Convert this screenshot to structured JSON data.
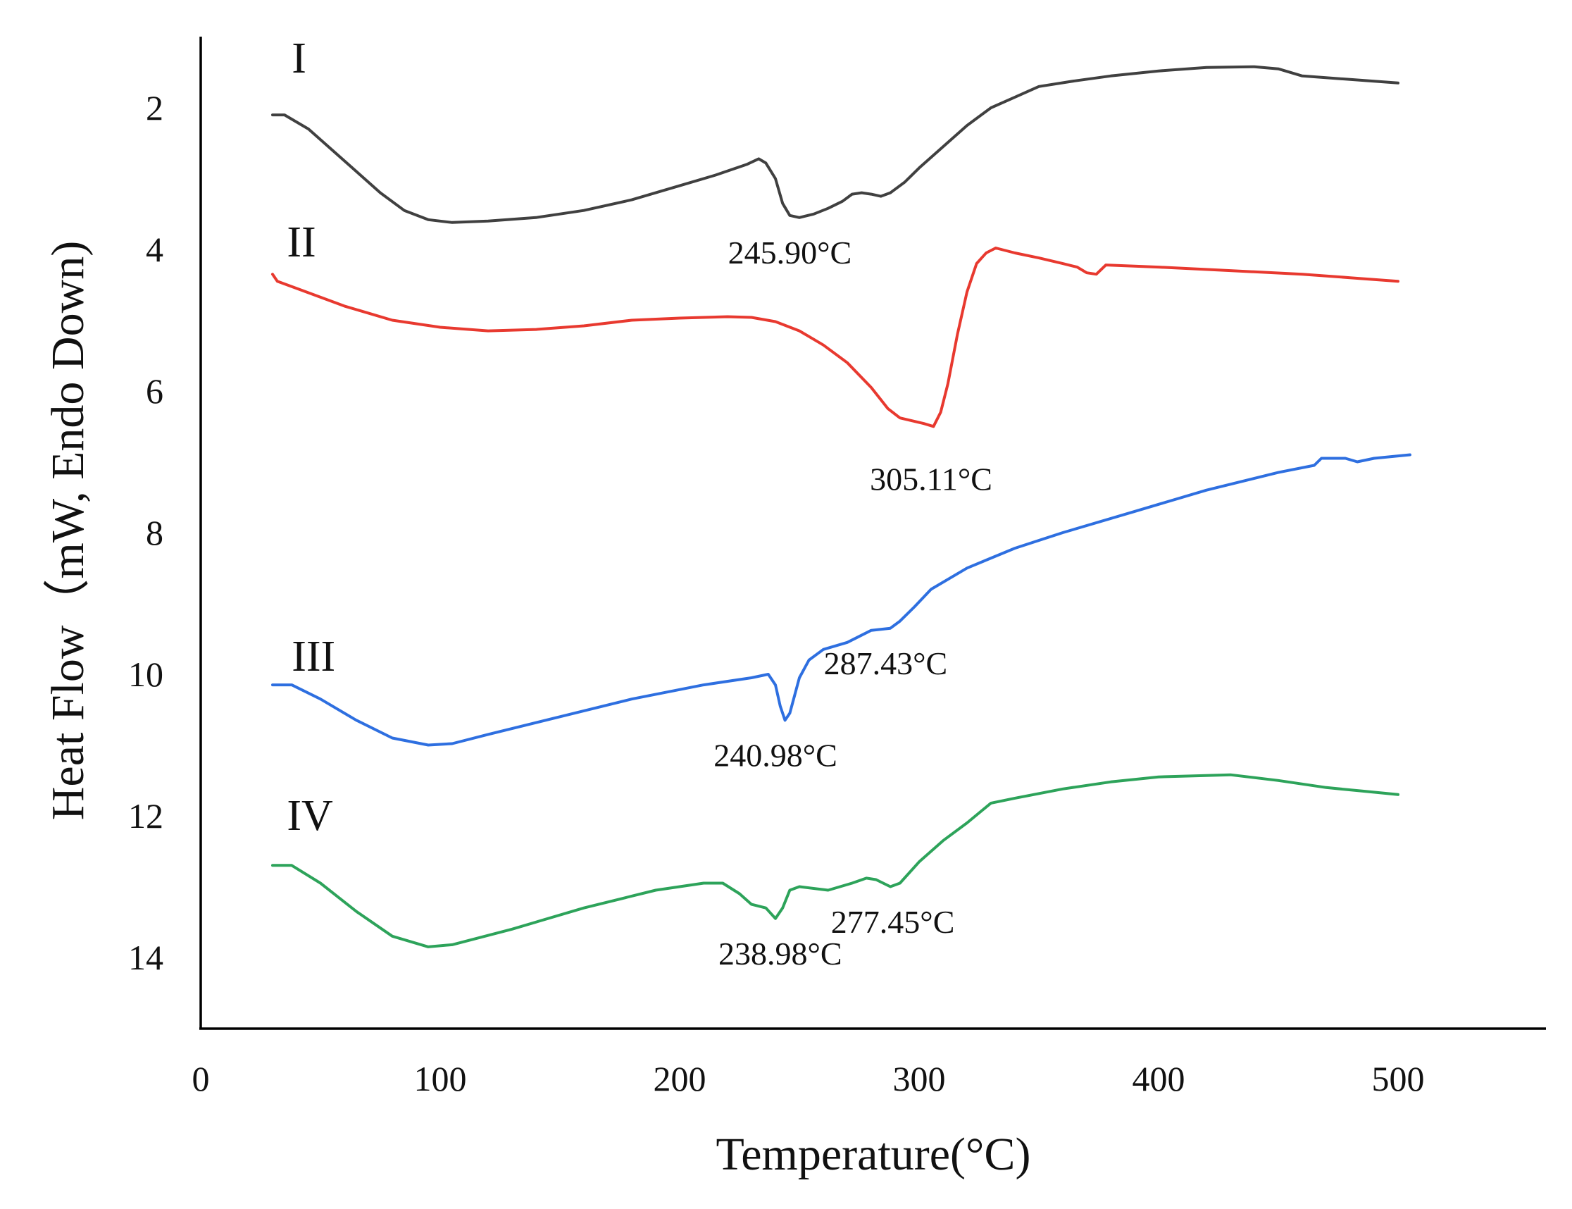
{
  "chart_data": {
    "type": "line",
    "title": "",
    "xlabel": "Temperature(°C)",
    "ylabel": "Heat Flow（mW, Endo Down)",
    "xlim": [
      0,
      550
    ],
    "ylim": [
      15,
      1
    ],
    "y_inverted": true,
    "grid": false,
    "legend": "none",
    "x_ticks": [
      "0",
      "100",
      "200",
      "300",
      "400",
      "500"
    ],
    "y_ticks": [
      "2",
      "4",
      "6",
      "8",
      "10",
      "12",
      "14"
    ],
    "series": [
      {
        "name": "I",
        "color": "#404040",
        "points": [
          [
            30,
            2.1
          ],
          [
            35,
            2.1
          ],
          [
            45,
            2.3
          ],
          [
            55,
            2.6
          ],
          [
            65,
            2.9
          ],
          [
            75,
            3.2
          ],
          [
            85,
            3.45
          ],
          [
            95,
            3.58
          ],
          [
            105,
            3.62
          ],
          [
            120,
            3.6
          ],
          [
            140,
            3.55
          ],
          [
            160,
            3.45
          ],
          [
            180,
            3.3
          ],
          [
            200,
            3.1
          ],
          [
            215,
            2.95
          ],
          [
            228,
            2.8
          ],
          [
            233,
            2.72
          ],
          [
            236,
            2.78
          ],
          [
            240,
            3.0
          ],
          [
            243,
            3.35
          ],
          [
            246,
            3.52
          ],
          [
            250,
            3.55
          ],
          [
            256,
            3.5
          ],
          [
            262,
            3.42
          ],
          [
            268,
            3.32
          ],
          [
            272,
            3.22
          ],
          [
            276,
            3.2
          ],
          [
            280,
            3.22
          ],
          [
            284,
            3.25
          ],
          [
            288,
            3.2
          ],
          [
            294,
            3.05
          ],
          [
            300,
            2.85
          ],
          [
            310,
            2.55
          ],
          [
            320,
            2.25
          ],
          [
            330,
            2.0
          ],
          [
            340,
            1.85
          ],
          [
            350,
            1.7
          ],
          [
            365,
            1.62
          ],
          [
            380,
            1.55
          ],
          [
            400,
            1.48
          ],
          [
            420,
            1.43
          ],
          [
            440,
            1.42
          ],
          [
            450,
            1.45
          ],
          [
            460,
            1.55
          ],
          [
            480,
            1.6
          ],
          [
            500,
            1.65
          ]
        ],
        "label_pos": [
          38,
          1.5
        ]
      },
      {
        "name": "II",
        "color": "#e8392f",
        "points": [
          [
            30,
            4.35
          ],
          [
            32,
            4.45
          ],
          [
            40,
            4.55
          ],
          [
            60,
            4.8
          ],
          [
            80,
            5.0
          ],
          [
            100,
            5.1
          ],
          [
            120,
            5.15
          ],
          [
            140,
            5.13
          ],
          [
            160,
            5.08
          ],
          [
            180,
            5.0
          ],
          [
            200,
            4.97
          ],
          [
            220,
            4.95
          ],
          [
            230,
            4.96
          ],
          [
            240,
            5.02
          ],
          [
            250,
            5.15
          ],
          [
            260,
            5.35
          ],
          [
            270,
            5.6
          ],
          [
            280,
            5.95
          ],
          [
            287,
            6.25
          ],
          [
            292,
            6.38
          ],
          [
            297,
            6.42
          ],
          [
            302,
            6.46
          ],
          [
            306,
            6.5
          ],
          [
            309,
            6.3
          ],
          [
            312,
            5.9
          ],
          [
            316,
            5.2
          ],
          [
            320,
            4.6
          ],
          [
            324,
            4.2
          ],
          [
            328,
            4.05
          ],
          [
            332,
            3.98
          ],
          [
            340,
            4.05
          ],
          [
            350,
            4.12
          ],
          [
            360,
            4.2
          ],
          [
            366,
            4.25
          ],
          [
            370,
            4.33
          ],
          [
            374,
            4.35
          ],
          [
            378,
            4.22
          ],
          [
            400,
            4.25
          ],
          [
            430,
            4.3
          ],
          [
            460,
            4.35
          ],
          [
            480,
            4.4
          ],
          [
            500,
            4.45
          ]
        ],
        "label_pos": [
          36,
          4.1
        ]
      },
      {
        "name": "III",
        "color": "#2e6fe0",
        "points": [
          [
            30,
            10.15
          ],
          [
            38,
            10.15
          ],
          [
            50,
            10.35
          ],
          [
            65,
            10.65
          ],
          [
            80,
            10.9
          ],
          [
            95,
            11.0
          ],
          [
            105,
            10.98
          ],
          [
            120,
            10.85
          ],
          [
            150,
            10.6
          ],
          [
            180,
            10.35
          ],
          [
            210,
            10.15
          ],
          [
            230,
            10.05
          ],
          [
            237,
            10.0
          ],
          [
            240,
            10.15
          ],
          [
            242,
            10.45
          ],
          [
            244,
            10.65
          ],
          [
            246,
            10.55
          ],
          [
            248,
            10.3
          ],
          [
            250,
            10.05
          ],
          [
            254,
            9.8
          ],
          [
            260,
            9.65
          ],
          [
            270,
            9.55
          ],
          [
            280,
            9.38
          ],
          [
            288,
            9.35
          ],
          [
            292,
            9.25
          ],
          [
            298,
            9.05
          ],
          [
            305,
            8.8
          ],
          [
            320,
            8.5
          ],
          [
            340,
            8.22
          ],
          [
            360,
            8.0
          ],
          [
            390,
            7.7
          ],
          [
            420,
            7.4
          ],
          [
            450,
            7.15
          ],
          [
            465,
            7.05
          ],
          [
            468,
            6.95
          ],
          [
            478,
            6.95
          ],
          [
            483,
            7.0
          ],
          [
            490,
            6.95
          ],
          [
            505,
            6.9
          ]
        ],
        "label_pos": [
          38,
          9.95
        ]
      },
      {
        "name": "IV",
        "color": "#2da35a",
        "points": [
          [
            30,
            12.7
          ],
          [
            38,
            12.7
          ],
          [
            50,
            12.95
          ],
          [
            65,
            13.35
          ],
          [
            80,
            13.7
          ],
          [
            95,
            13.85
          ],
          [
            105,
            13.82
          ],
          [
            130,
            13.6
          ],
          [
            160,
            13.3
          ],
          [
            190,
            13.05
          ],
          [
            210,
            12.95
          ],
          [
            218,
            12.95
          ],
          [
            225,
            13.1
          ],
          [
            230,
            13.25
          ],
          [
            236,
            13.3
          ],
          [
            240,
            13.45
          ],
          [
            243,
            13.3
          ],
          [
            246,
            13.05
          ],
          [
            250,
            13.0
          ],
          [
            262,
            13.05
          ],
          [
            272,
            12.95
          ],
          [
            278,
            12.88
          ],
          [
            282,
            12.9
          ],
          [
            288,
            13.0
          ],
          [
            292,
            12.95
          ],
          [
            300,
            12.65
          ],
          [
            310,
            12.35
          ],
          [
            320,
            12.1
          ],
          [
            330,
            11.82
          ],
          [
            340,
            11.75
          ],
          [
            360,
            11.62
          ],
          [
            380,
            11.52
          ],
          [
            400,
            11.45
          ],
          [
            430,
            11.42
          ],
          [
            450,
            11.5
          ],
          [
            470,
            11.6
          ],
          [
            485,
            11.65
          ],
          [
            500,
            11.7
          ]
        ],
        "label_pos": [
          36,
          12.2
        ]
      }
    ],
    "annotations": [
      {
        "text": "245.90°C",
        "x": 246,
        "y": 4.2
      },
      {
        "text": "305.11°C",
        "x": 305,
        "y": 7.4
      },
      {
        "text": "287.43°C",
        "x": 286,
        "y": 10.0
      },
      {
        "text": "240.98°C",
        "x": 240,
        "y": 11.3
      },
      {
        "text": "277.45°C",
        "x": 289,
        "y": 13.65
      },
      {
        "text": "238.98°C",
        "x": 242,
        "y": 14.1
      }
    ]
  }
}
